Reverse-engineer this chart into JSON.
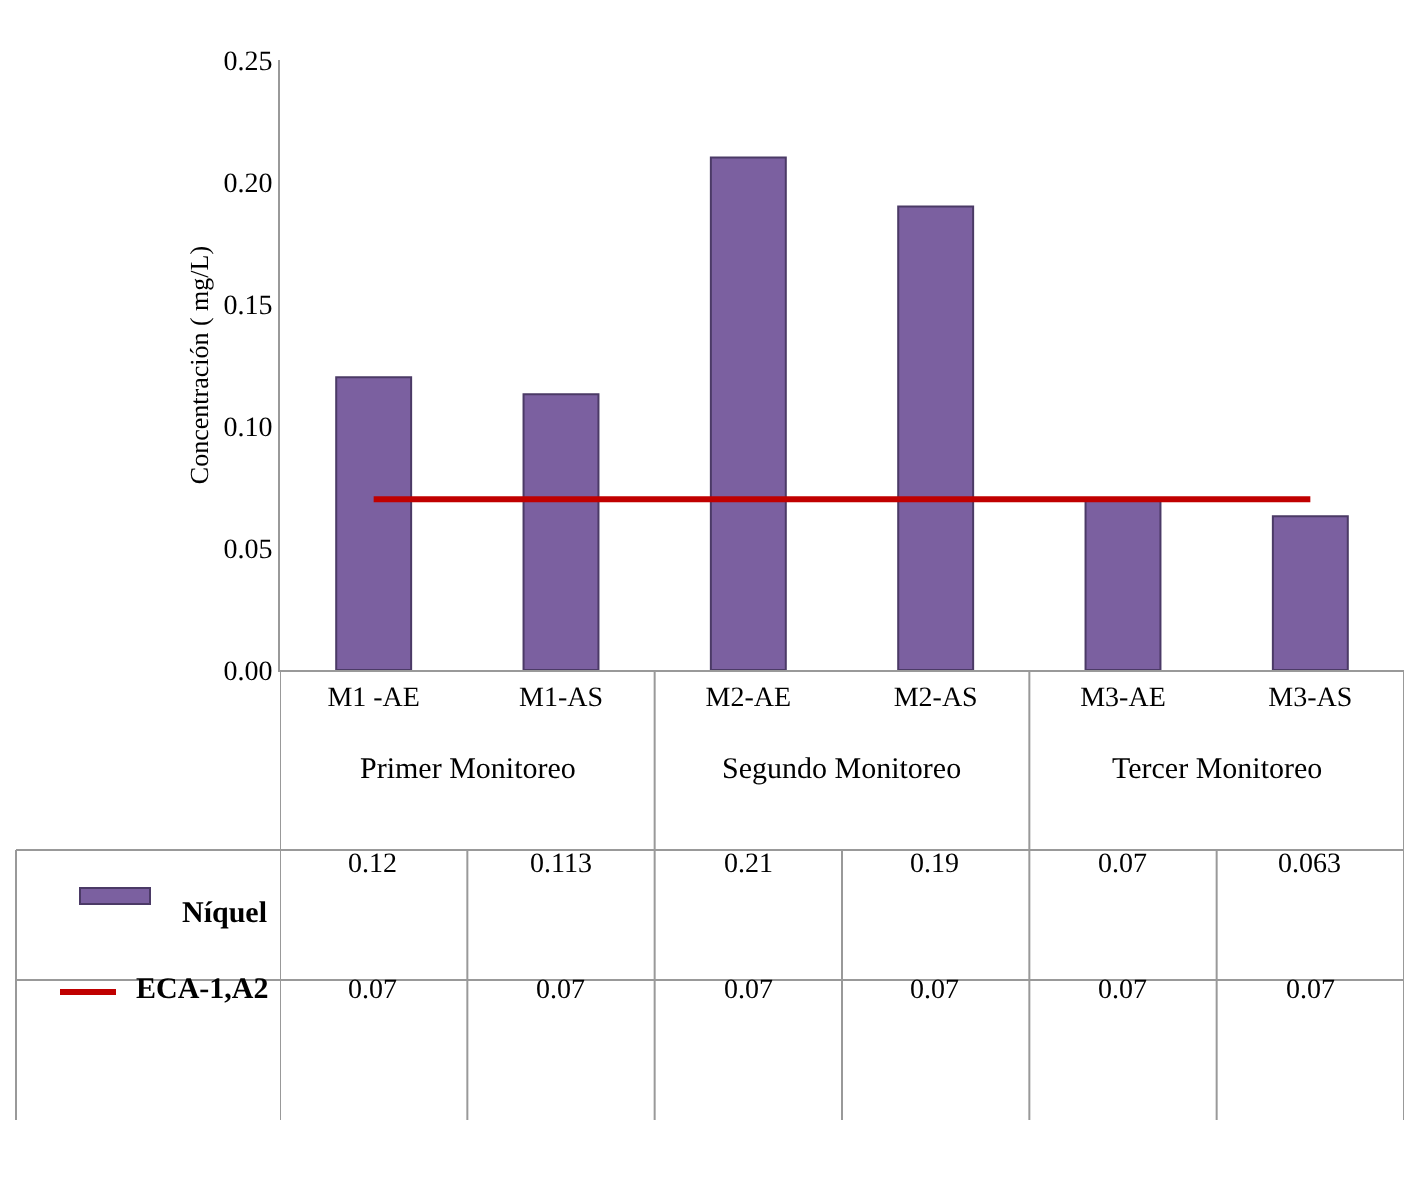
{
  "chart_data": {
    "type": "bar",
    "ylabel": "Concentración ( mg/L)",
    "categories": [
      "M1 -AE",
      "M1-AS",
      "M2-AE",
      "M2-AS",
      "M3-AE",
      "M3-AS"
    ],
    "series": [
      {
        "name": "Níquel",
        "color": "#7b60a0",
        "values": [
          0.12,
          0.113,
          0.21,
          0.19,
          0.07,
          0.063
        ]
      },
      {
        "name": "ECA-1,A2",
        "type": "line",
        "color": "#c00000",
        "values": [
          0.07,
          0.07,
          0.07,
          0.07,
          0.07,
          0.07
        ]
      }
    ],
    "ylim": [
      0,
      0.25
    ],
    "yticks": [
      {
        "value": 0,
        "label": "0.00"
      },
      0.05,
      {
        "value": 0.1,
        "label": "0.10"
      },
      0.15,
      {
        "value": 0.2,
        "label": "0.20"
      },
      0.25
    ],
    "data_labels": true,
    "legend": "bottom left",
    "annotations": [
      "Primer Monitoreo",
      "Segundo Monitoreo",
      "Tercer Monitoreo"
    ]
  }
}
